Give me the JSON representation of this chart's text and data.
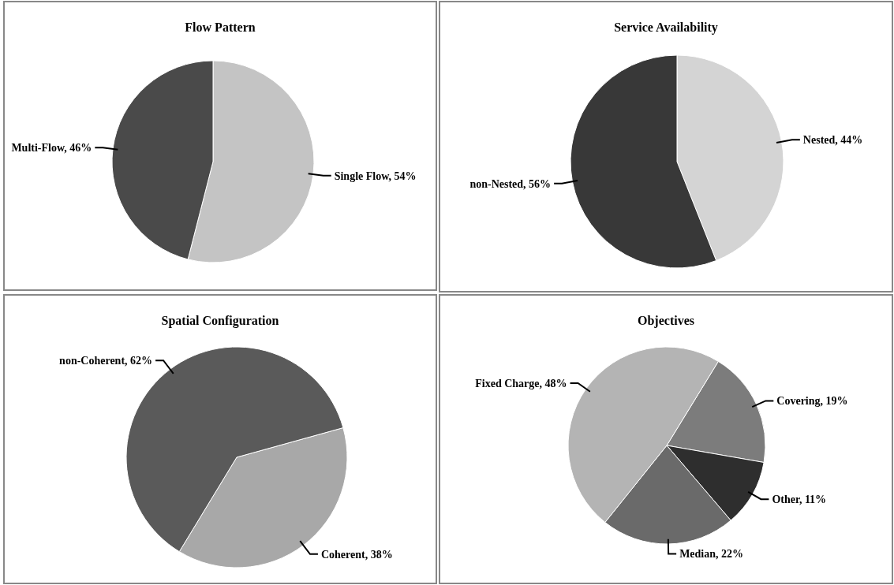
{
  "chart_data": [
    {
      "type": "pie",
      "title": "Flow Pattern",
      "categories": [
        "Single Flow",
        "Multi-Flow"
      ],
      "values": [
        54,
        46
      ],
      "colors": [
        "#c4c4c4",
        "#4a4a4a"
      ],
      "value_labels": [
        "54%",
        "46%"
      ]
    },
    {
      "type": "pie",
      "title": "Service Availability",
      "categories": [
        "Nested",
        "non-Nested"
      ],
      "values": [
        44,
        56
      ],
      "colors": [
        "#d4d4d4",
        "#383838"
      ],
      "value_labels": [
        "44%",
        "56%"
      ]
    },
    {
      "type": "pie",
      "title": "Spatial Configuration",
      "categories": [
        "Coherent",
        "non-Coherent"
      ],
      "values": [
        38,
        62
      ],
      "colors": [
        "#a8a8a8",
        "#5a5a5a"
      ],
      "value_labels": [
        "38%",
        "62%"
      ]
    },
    {
      "type": "pie",
      "title": "Objectives",
      "categories": [
        "Covering",
        "Other",
        "Median",
        "Fixed Charge"
      ],
      "values": [
        19,
        11,
        22,
        48
      ],
      "colors": [
        "#7c7c7c",
        "#2e2e2e",
        "#6a6a6a",
        "#b4b4b4"
      ],
      "value_labels": [
        "19%",
        "11%",
        "22%",
        "48%"
      ]
    }
  ]
}
